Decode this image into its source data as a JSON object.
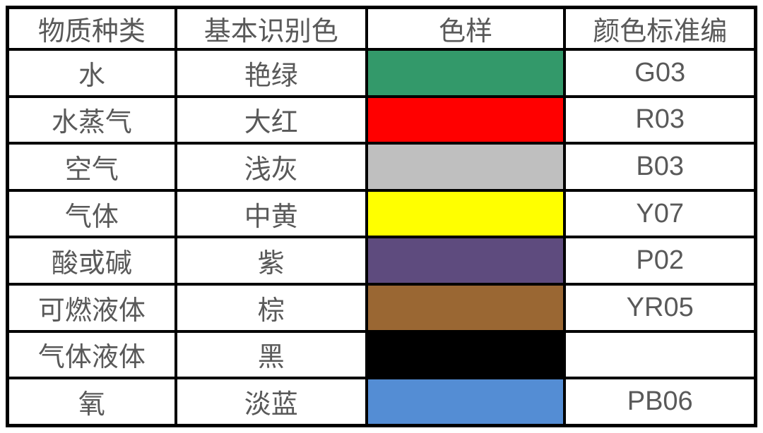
{
  "styles": {
    "text_color": "#595959",
    "border_color": "#000000",
    "background": "#ffffff"
  },
  "table": {
    "headers": {
      "substance": "物质种类",
      "color_name": "基本识别色",
      "swatch": "色样",
      "code": "颜色标准编"
    },
    "rows": [
      {
        "substance": "水",
        "color_name": "艳绿",
        "swatch": "#33996A",
        "code": "G03"
      },
      {
        "substance": "水蒸气",
        "color_name": "大红",
        "swatch": "#FF0000",
        "code": "R03"
      },
      {
        "substance": "空气",
        "color_name": "浅灰",
        "swatch": "#BFBFBF",
        "code": "B03"
      },
      {
        "substance": "气体",
        "color_name": "中黄",
        "swatch": "#FFFF00",
        "code": "Y07"
      },
      {
        "substance": "酸或碱",
        "color_name": "紫",
        "swatch": "#5E4B7E",
        "code": "P02"
      },
      {
        "substance": "可燃液体",
        "color_name": "棕",
        "swatch": "#9A6733",
        "code": "YR05"
      },
      {
        "substance": "气体液体",
        "color_name": "黑",
        "swatch": "#000000",
        "code": ""
      },
      {
        "substance": "氧",
        "color_name": "淡蓝",
        "swatch": "#548DD4",
        "code": "PB06"
      }
    ]
  }
}
